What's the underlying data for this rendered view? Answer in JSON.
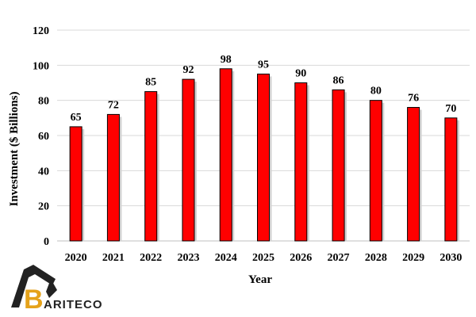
{
  "chart_data": {
    "type": "bar",
    "categories": [
      "2020",
      "2021",
      "2022",
      "2023",
      "2024",
      "2025",
      "2026",
      "2027",
      "2028",
      "2029",
      "2030"
    ],
    "values": [
      65,
      72,
      85,
      92,
      98,
      95,
      90,
      86,
      80,
      76,
      70
    ],
    "xlabel": "Year",
    "ylabel": "Investment ($ Billions)",
    "ylim": [
      0,
      120
    ],
    "yticks": [
      0,
      20,
      40,
      60,
      80,
      100,
      120
    ],
    "grid": true,
    "legend": "none",
    "bar_color": "#ff0000",
    "bar_edge_color": "#000000"
  },
  "logo": {
    "text_lead": "B",
    "text_rest": "ARITECO",
    "colors": {
      "gold": "#e5a21a",
      "dark": "#222222"
    }
  }
}
